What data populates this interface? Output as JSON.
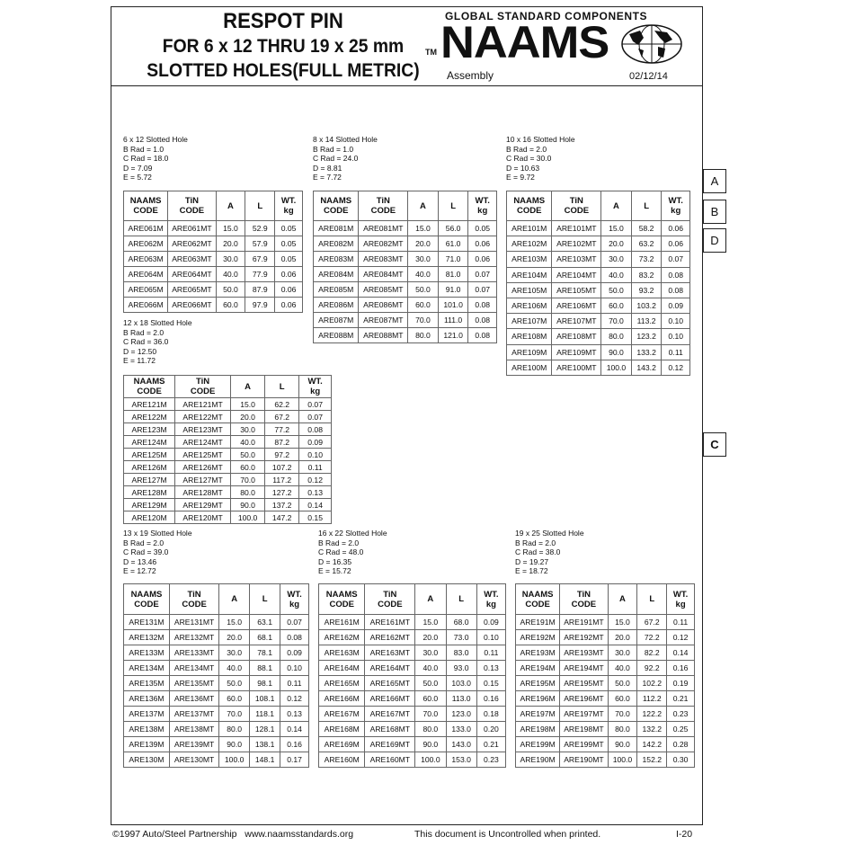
{
  "header": {
    "title_lines": [
      "RESPOT PIN",
      "FOR 6 x 12 THRU 19 x 25 mm",
      "SLOTTED HOLES(FULL METRIC)"
    ],
    "tm": "TM",
    "brand_tagline": "GLOBAL STANDARD COMPONENTS",
    "brand": "NAAMS",
    "section": "Assembly",
    "date": "02/12/14"
  },
  "side_tabs": [
    "A",
    "B",
    "D",
    "C"
  ],
  "tables": [
    {
      "caption": [
        "6 x 12 Slotted Hole",
        "B Rad = 1.0",
        "C Rad = 18.0",
        "D = 7.09",
        "E = 5.72"
      ],
      "header": [
        [
          "NAAMS",
          "CODE"
        ],
        [
          "TiN",
          "CODE"
        ],
        [
          "A"
        ],
        [
          "L"
        ],
        [
          "WT.",
          "kg"
        ]
      ],
      "rows": [
        [
          "ARE061M",
          "ARE061MT",
          "15.0",
          "52.9",
          "0.05"
        ],
        [
          "ARE062M",
          "ARE062MT",
          "20.0",
          "57.9",
          "0.05"
        ],
        [
          "ARE063M",
          "ARE063MT",
          "30.0",
          "67.9",
          "0.05"
        ],
        [
          "ARE064M",
          "ARE064MT",
          "40.0",
          "77.9",
          "0.06"
        ],
        [
          "ARE065M",
          "ARE065MT",
          "50.0",
          "87.9",
          "0.06"
        ],
        [
          "ARE066M",
          "ARE066MT",
          "60.0",
          "97.9",
          "0.06"
        ]
      ]
    },
    {
      "caption": [
        "8 x 14 Slotted Hole",
        "B Rad = 1.0",
        "C Rad = 24.0",
        "D = 8.81",
        "E = 7.72"
      ],
      "header": [
        [
          "NAAMS",
          "CODE"
        ],
        [
          "TiN",
          "CODE"
        ],
        [
          "A"
        ],
        [
          "L"
        ],
        [
          "WT.",
          "kg"
        ]
      ],
      "rows": [
        [
          "ARE081M",
          "ARE081MT",
          "15.0",
          "56.0",
          "0.05"
        ],
        [
          "ARE082M",
          "ARE082MT",
          "20.0",
          "61.0",
          "0.06"
        ],
        [
          "ARE083M",
          "ARE083MT",
          "30.0",
          "71.0",
          "0.06"
        ],
        [
          "ARE084M",
          "ARE084MT",
          "40.0",
          "81.0",
          "0.07"
        ],
        [
          "ARE085M",
          "ARE085MT",
          "50.0",
          "91.0",
          "0.07"
        ],
        [
          "ARE086M",
          "ARE086MT",
          "60.0",
          "101.0",
          "0.08"
        ],
        [
          "ARE087M",
          "ARE087MT",
          "70.0",
          "111.0",
          "0.08"
        ],
        [
          "ARE088M",
          "ARE088MT",
          "80.0",
          "121.0",
          "0.08"
        ]
      ]
    },
    {
      "caption": [
        "10 x 16 Slotted Hole",
        "B Rad = 2.0",
        "C Rad = 30.0",
        "D = 10.63",
        "E = 9.72"
      ],
      "header": [
        [
          "NAAMS",
          "CODE"
        ],
        [
          "TiN",
          "CODE"
        ],
        [
          "A"
        ],
        [
          "L"
        ],
        [
          "WT.",
          "kg"
        ]
      ],
      "rows": [
        [
          "ARE101M",
          "ARE101MT",
          "15.0",
          "58.2",
          "0.06"
        ],
        [
          "ARE102M",
          "ARE102MT",
          "20.0",
          "63.2",
          "0.06"
        ],
        [
          "ARE103M",
          "ARE103MT",
          "30.0",
          "73.2",
          "0.07"
        ],
        [
          "ARE104M",
          "ARE104MT",
          "40.0",
          "83.2",
          "0.08"
        ],
        [
          "ARE105M",
          "ARE105MT",
          "50.0",
          "93.2",
          "0.08"
        ],
        [
          "ARE106M",
          "ARE106MT",
          "60.0",
          "103.2",
          "0.09"
        ],
        [
          "ARE107M",
          "ARE107MT",
          "70.0",
          "113.2",
          "0.10"
        ],
        [
          "ARE108M",
          "ARE108MT",
          "80.0",
          "123.2",
          "0.10"
        ],
        [
          "ARE109M",
          "ARE109MT",
          "90.0",
          "133.2",
          "0.11"
        ],
        [
          "ARE100M",
          "ARE100MT",
          "100.0",
          "143.2",
          "0.12"
        ]
      ]
    },
    {
      "caption": [
        "12 x 18 Slotted Hole",
        "B Rad = 2.0",
        "C Rad = 36.0",
        "D = 12.50",
        "E = 11.72"
      ],
      "header": [
        [
          "NAAMS",
          "CODE"
        ],
        [
          "TiN",
          "CODE"
        ],
        [
          "A"
        ],
        [
          "L"
        ],
        [
          "WT.",
          "kg"
        ]
      ],
      "rows": [
        [
          "ARE121M",
          "ARE121MT",
          "15.0",
          "62.2",
          "0.07"
        ],
        [
          "ARE122M",
          "ARE122MT",
          "20.0",
          "67.2",
          "0.07"
        ],
        [
          "ARE123M",
          "ARE123MT",
          "30.0",
          "77.2",
          "0.08"
        ],
        [
          "ARE124M",
          "ARE124MT",
          "40.0",
          "87.2",
          "0.09"
        ],
        [
          "ARE125M",
          "ARE125MT",
          "50.0",
          "97.2",
          "0.10"
        ],
        [
          "ARE126M",
          "ARE126MT",
          "60.0",
          "107.2",
          "0.11"
        ],
        [
          "ARE127M",
          "ARE127MT",
          "70.0",
          "117.2",
          "0.12"
        ],
        [
          "ARE128M",
          "ARE128MT",
          "80.0",
          "127.2",
          "0.13"
        ],
        [
          "ARE129M",
          "ARE129MT",
          "90.0",
          "137.2",
          "0.14"
        ],
        [
          "ARE120M",
          "ARE120MT",
          "100.0",
          "147.2",
          "0.15"
        ]
      ]
    },
    {
      "caption": [
        "13 x 19 Slotted Hole",
        "B Rad = 2.0",
        "C Rad = 39.0",
        "D = 13.46",
        "E = 12.72"
      ],
      "header": [
        [
          "NAAMS",
          "CODE"
        ],
        [
          "TiN",
          "CODE"
        ],
        [
          "A"
        ],
        [
          "L"
        ],
        [
          "WT.",
          "kg"
        ]
      ],
      "rows": [
        [
          "ARE131M",
          "ARE131MT",
          "15.0",
          "63.1",
          "0.07"
        ],
        [
          "ARE132M",
          "ARE132MT",
          "20.0",
          "68.1",
          "0.08"
        ],
        [
          "ARE133M",
          "ARE133MT",
          "30.0",
          "78.1",
          "0.09"
        ],
        [
          "ARE134M",
          "ARE134MT",
          "40.0",
          "88.1",
          "0.10"
        ],
        [
          "ARE135M",
          "ARE135MT",
          "50.0",
          "98.1",
          "0.11"
        ],
        [
          "ARE136M",
          "ARE136MT",
          "60.0",
          "108.1",
          "0.12"
        ],
        [
          "ARE137M",
          "ARE137MT",
          "70.0",
          "118.1",
          "0.13"
        ],
        [
          "ARE138M",
          "ARE138MT",
          "80.0",
          "128.1",
          "0.14"
        ],
        [
          "ARE139M",
          "ARE139MT",
          "90.0",
          "138.1",
          "0.16"
        ],
        [
          "ARE130M",
          "ARE130MT",
          "100.0",
          "148.1",
          "0.17"
        ]
      ]
    },
    {
      "caption": [
        "16 x 22 Slotted Hole",
        "B Rad = 2.0",
        "C Rad = 48.0",
        "D = 16.35",
        "E = 15.72"
      ],
      "header": [
        [
          "NAAMS",
          "CODE"
        ],
        [
          "TiN",
          "CODE"
        ],
        [
          "A"
        ],
        [
          "L"
        ],
        [
          "WT.",
          "kg"
        ]
      ],
      "rows": [
        [
          "ARE161M",
          "ARE161MT",
          "15.0",
          "68.0",
          "0.09"
        ],
        [
          "ARE162M",
          "ARE162MT",
          "20.0",
          "73.0",
          "0.10"
        ],
        [
          "ARE163M",
          "ARE163MT",
          "30.0",
          "83.0",
          "0.11"
        ],
        [
          "ARE164M",
          "ARE164MT",
          "40.0",
          "93.0",
          "0.13"
        ],
        [
          "ARE165M",
          "ARE165MT",
          "50.0",
          "103.0",
          "0.15"
        ],
        [
          "ARE166M",
          "ARE166MT",
          "60.0",
          "113.0",
          "0.16"
        ],
        [
          "ARE167M",
          "ARE167MT",
          "70.0",
          "123.0",
          "0.18"
        ],
        [
          "ARE168M",
          "ARE168MT",
          "80.0",
          "133.0",
          "0.20"
        ],
        [
          "ARE169M",
          "ARE169MT",
          "90.0",
          "143.0",
          "0.21"
        ],
        [
          "ARE160M",
          "ARE160MT",
          "100.0",
          "153.0",
          "0.23"
        ]
      ]
    },
    {
      "caption": [
        "19 x 25 Slotted Hole",
        "B Rad = 2.0",
        "C Rad = 38.0",
        "D = 19.27",
        "E = 18.72"
      ],
      "header": [
        [
          "NAAMS",
          "CODE"
        ],
        [
          "TiN",
          "CODE"
        ],
        [
          "A"
        ],
        [
          "L"
        ],
        [
          "WT.",
          "kg"
        ]
      ],
      "rows": [
        [
          "ARE191M",
          "ARE191MT",
          "15.0",
          "67.2",
          "0.11"
        ],
        [
          "ARE192M",
          "ARE192MT",
          "20.0",
          "72.2",
          "0.12"
        ],
        [
          "ARE193M",
          "ARE193MT",
          "30.0",
          "82.2",
          "0.14"
        ],
        [
          "ARE194M",
          "ARE194MT",
          "40.0",
          "92.2",
          "0.16"
        ],
        [
          "ARE195M",
          "ARE195MT",
          "50.0",
          "102.2",
          "0.19"
        ],
        [
          "ARE196M",
          "ARE196MT",
          "60.0",
          "112.2",
          "0.21"
        ],
        [
          "ARE197M",
          "ARE197MT",
          "70.0",
          "122.2",
          "0.23"
        ],
        [
          "ARE198M",
          "ARE198MT",
          "80.0",
          "132.2",
          "0.25"
        ],
        [
          "ARE199M",
          "ARE199MT",
          "90.0",
          "142.2",
          "0.28"
        ],
        [
          "ARE190M",
          "ARE190MT",
          "100.0",
          "152.2",
          "0.30"
        ]
      ]
    }
  ],
  "footer": {
    "copyright": "©1997 Auto/Steel Partnership   www.naamsstandards.org",
    "notice": "This document is Uncontrolled when printed.",
    "page": "I-20"
  }
}
